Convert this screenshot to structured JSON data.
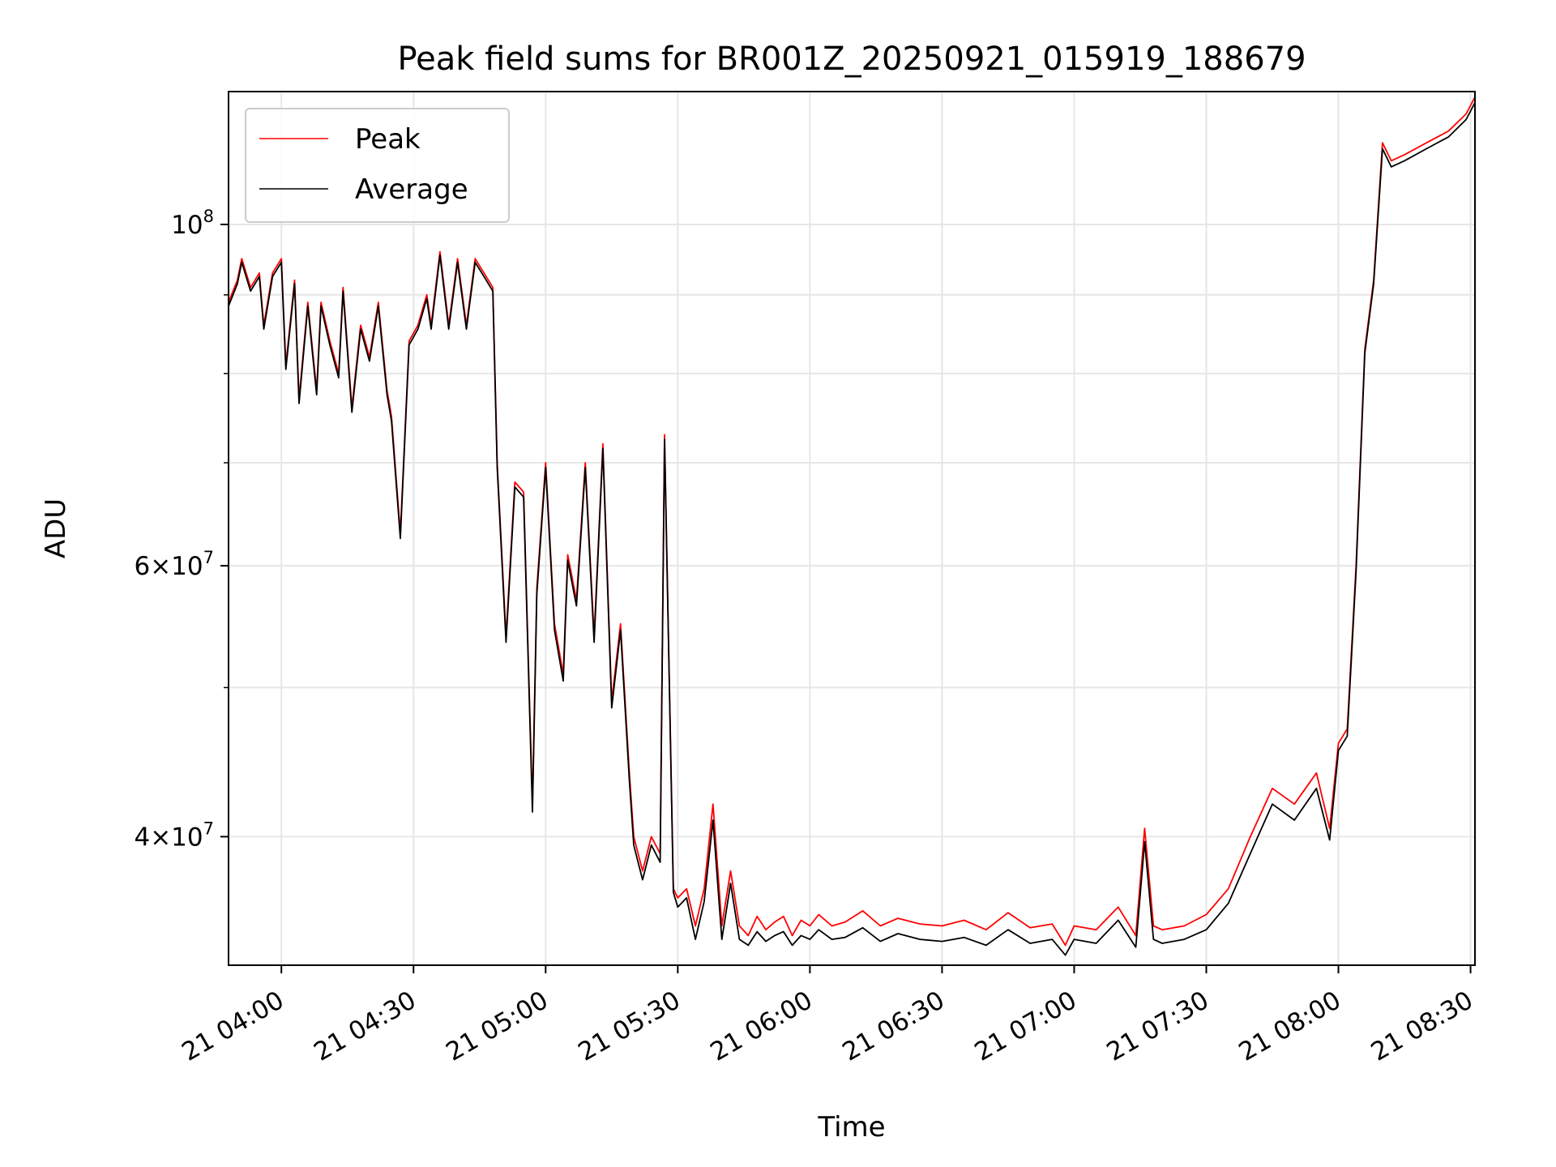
{
  "chart_data": {
    "type": "line",
    "title": "Peak field sums for BR001Z_20250921_015919_188679",
    "xlabel": "Time",
    "ylabel": "ADU",
    "y_scale": "log",
    "ylim": [
      33000000,
      122000000
    ],
    "xlim": [
      "2025-09-21 03:48",
      "2025-09-21 08:31"
    ],
    "grid": true,
    "legend_position": "top-left",
    "x_ticks": [
      "21 04:00",
      "21 04:30",
      "21 05:00",
      "21 05:30",
      "21 06:00",
      "21 06:30",
      "21 07:00",
      "21 07:30",
      "21 08:00",
      "21 08:30"
    ],
    "y_ticks": [
      {
        "base": "10",
        "exp": "8",
        "prefix": ""
      },
      {
        "base": "10",
        "exp": "7",
        "prefix": "6×"
      },
      {
        "base": "10",
        "exp": "7",
        "prefix": "4×"
      }
    ],
    "series": [
      {
        "name": "Peak",
        "color": "#ff0000",
        "x": [
          "03:48",
          "03:50",
          "03:51",
          "03:53",
          "03:55",
          "03:56",
          "03:58",
          "04:00",
          "04:01",
          "04:03",
          "04:04",
          "04:06",
          "04:08",
          "04:09",
          "04:11",
          "04:13",
          "04:14",
          "04:16",
          "04:18",
          "04:20",
          "04:22",
          "04:24",
          "04:25",
          "04:27",
          "04:29",
          "04:31",
          "04:33",
          "04:34",
          "04:36",
          "04:38",
          "04:40",
          "04:42",
          "04:44",
          "04:46",
          "04:48",
          "04:49",
          "04:51",
          "04:53",
          "04:55",
          "04:57",
          "04:58",
          "05:00",
          "05:02",
          "05:04",
          "05:05",
          "05:07",
          "05:09",
          "05:11",
          "05:13",
          "05:15",
          "05:17",
          "05:19",
          "05:20",
          "05:22",
          "05:24",
          "05:26",
          "05:27",
          "05:29",
          "05:30",
          "05:32",
          "05:34",
          "05:36",
          "05:38",
          "05:40",
          "05:42",
          "05:44",
          "05:46",
          "05:48",
          "05:50",
          "05:52",
          "05:54",
          "05:56",
          "05:58",
          "06:00",
          "06:02",
          "06:05",
          "06:08",
          "06:12",
          "06:16",
          "06:20",
          "06:25",
          "06:30",
          "06:35",
          "06:40",
          "06:45",
          "06:50",
          "06:55",
          "06:58",
          "07:00",
          "07:05",
          "07:10",
          "07:14",
          "07:16",
          "07:18",
          "07:20",
          "07:25",
          "07:30",
          "07:35",
          "07:40",
          "07:45",
          "07:50",
          "07:55",
          "07:58",
          "08:00",
          "08:02",
          "08:04",
          "08:06",
          "08:08",
          "08:10",
          "08:12",
          "08:15",
          "08:20",
          "08:25",
          "08:29",
          "08:31"
        ],
        "y": [
          89000000,
          92000000,
          95000000,
          91000000,
          93000000,
          86000000,
          93000000,
          95000000,
          81000000,
          92000000,
          77000000,
          89000000,
          78000000,
          89000000,
          84000000,
          80000000,
          91000000,
          76000000,
          86000000,
          82000000,
          89000000,
          78000000,
          75000000,
          63000000,
          84000000,
          86000000,
          90000000,
          86000000,
          96000000,
          86000000,
          95000000,
          86000000,
          95000000,
          93000000,
          91000000,
          70000000,
          54000000,
          68000000,
          67000000,
          42000000,
          58000000,
          70000000,
          55000000,
          51000000,
          61000000,
          57000000,
          70000000,
          54000000,
          72000000,
          49000000,
          55000000,
          44000000,
          40000000,
          38000000,
          40000000,
          39000000,
          73000000,
          37000000,
          36500000,
          37000000,
          35000000,
          37000000,
          42000000,
          35000000,
          38000000,
          35000000,
          34500000,
          35500000,
          34800000,
          35200000,
          35500000,
          34500000,
          35300000,
          35000000,
          35600000,
          35000000,
          35200000,
          35800000,
          35000000,
          35400000,
          35100000,
          35000000,
          35300000,
          34800000,
          35700000,
          34900000,
          35100000,
          34000000,
          35000000,
          34800000,
          36000000,
          34500000,
          40500000,
          35000000,
          34800000,
          35000000,
          35600000,
          37000000,
          40000000,
          43000000,
          42000000,
          44000000,
          40500000,
          46000000,
          47000000,
          60000000,
          83000000,
          92000000,
          113000000,
          110000000,
          111000000,
          113000000,
          115000000,
          118000000,
          121000000
        ]
      },
      {
        "name": "Average",
        "color": "#000000",
        "x": [
          "03:48",
          "03:50",
          "03:51",
          "03:53",
          "03:55",
          "03:56",
          "03:58",
          "04:00",
          "04:01",
          "04:03",
          "04:04",
          "04:06",
          "04:08",
          "04:09",
          "04:11",
          "04:13",
          "04:14",
          "04:16",
          "04:18",
          "04:20",
          "04:22",
          "04:24",
          "04:25",
          "04:27",
          "04:29",
          "04:31",
          "04:33",
          "04:34",
          "04:36",
          "04:38",
          "04:40",
          "04:42",
          "04:44",
          "04:46",
          "04:48",
          "04:49",
          "04:51",
          "04:53",
          "04:55",
          "04:57",
          "04:58",
          "05:00",
          "05:02",
          "05:04",
          "05:05",
          "05:07",
          "05:09",
          "05:11",
          "05:13",
          "05:15",
          "05:17",
          "05:19",
          "05:20",
          "05:22",
          "05:24",
          "05:26",
          "05:27",
          "05:29",
          "05:30",
          "05:32",
          "05:34",
          "05:36",
          "05:38",
          "05:40",
          "05:42",
          "05:44",
          "05:46",
          "05:48",
          "05:50",
          "05:52",
          "05:54",
          "05:56",
          "05:58",
          "06:00",
          "06:02",
          "06:05",
          "06:08",
          "06:12",
          "06:16",
          "06:20",
          "06:25",
          "06:30",
          "06:35",
          "06:40",
          "06:45",
          "06:50",
          "06:55",
          "06:58",
          "07:00",
          "07:05",
          "07:10",
          "07:14",
          "07:16",
          "07:18",
          "07:20",
          "07:25",
          "07:30",
          "07:35",
          "07:40",
          "07:45",
          "07:50",
          "07:55",
          "07:58",
          "08:00",
          "08:02",
          "08:04",
          "08:06",
          "08:08",
          "08:10",
          "08:12",
          "08:15",
          "08:20",
          "08:25",
          "08:29",
          "08:31"
        ],
        "y": [
          88500000,
          91500000,
          94500000,
          90500000,
          92500000,
          85500000,
          92500000,
          94500000,
          80500000,
          91500000,
          76500000,
          88500000,
          77500000,
          88500000,
          83500000,
          79500000,
          90500000,
          75500000,
          85500000,
          81500000,
          88500000,
          77500000,
          74500000,
          62500000,
          83500000,
          85500000,
          89500000,
          85500000,
          95500000,
          85500000,
          94500000,
          85500000,
          94500000,
          92500000,
          90500000,
          69500000,
          53500000,
          67500000,
          66500000,
          41500000,
          57500000,
          69500000,
          54500000,
          50500000,
          60500000,
          56500000,
          69500000,
          53500000,
          71500000,
          48500000,
          54500000,
          43500000,
          39500000,
          37500000,
          39500000,
          38500000,
          72500000,
          36800000,
          36000000,
          36500000,
          34300000,
          36300000,
          41000000,
          34300000,
          37300000,
          34300000,
          34000000,
          34700000,
          34200000,
          34500000,
          34700000,
          34000000,
          34500000,
          34300000,
          34800000,
          34300000,
          34400000,
          34900000,
          34200000,
          34600000,
          34300000,
          34200000,
          34400000,
          34000000,
          34800000,
          34100000,
          34300000,
          33500000,
          34300000,
          34100000,
          35300000,
          33900000,
          39700000,
          34300000,
          34100000,
          34300000,
          34800000,
          36200000,
          39000000,
          42000000,
          41000000,
          43000000,
          39800000,
          45500000,
          46500000,
          59500000,
          82500000,
          91500000,
          112000000,
          109000000,
          110000000,
          112000000,
          114000000,
          117000000,
          120000000
        ]
      }
    ]
  }
}
